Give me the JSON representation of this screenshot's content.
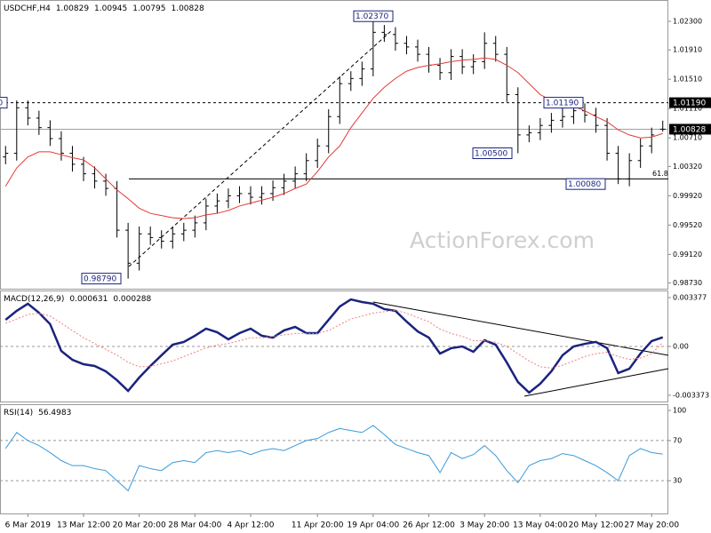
{
  "chart_data": [
    {
      "type": "ohlc",
      "title": "USDCHF,H4",
      "color": "#000000",
      "watermark": "ActionForex.com",
      "categories": [
        null,
        null,
        "6 Mar 2019",
        null,
        null,
        null,
        null,
        "13 Mar 12:00",
        null,
        null,
        null,
        null,
        "20 Mar 20:00",
        null,
        null,
        null,
        null,
        "28 Mar 04:00",
        null,
        null,
        null,
        null,
        "4 Apr 12:00",
        null,
        null,
        null,
        null,
        null,
        "11 Apr 20:00",
        null,
        null,
        null,
        null,
        "19 Apr 04:00",
        null,
        null,
        null,
        null,
        "26 Apr 12:00",
        null,
        null,
        null,
        null,
        "3 May 20:00",
        null,
        null,
        null,
        null,
        "13 May 04:00",
        null,
        null,
        null,
        null,
        "20 May 12:00",
        null,
        null,
        null,
        null,
        "27 May 20:00",
        null
      ],
      "open": [
        1.0045,
        1.005,
        1.0112,
        1.0098,
        1.0085,
        1.007,
        1.005,
        1.0035,
        1.0022,
        1.0012,
        1.0002,
        0.9945,
        0.99,
        0.994,
        0.9935,
        0.993,
        0.994,
        0.9945,
        0.9955,
        0.9978,
        0.9985,
        0.9992,
        0.9995,
        0.999,
        0.9995,
        1.0003,
        1.0012,
        1.0022,
        1.004,
        1.006,
        1.01,
        1.0145,
        1.0152,
        1.0165,
        1.0215,
        1.0212,
        1.02,
        1.0195,
        1.0185,
        1.017,
        1.016,
        1.0182,
        1.0168,
        1.0175,
        1.02,
        1.0185,
        1.013,
        1.0075,
        1.0078,
        1.0088,
        1.0095,
        1.01,
        1.0108,
        1.0102,
        1.0088,
        1.005,
        1.0015,
        1.004,
        1.006,
        1.00829
      ],
      "high": [
        1.006,
        1.0122,
        1.0122,
        1.0108,
        1.0095,
        1.008,
        1.006,
        1.0045,
        1.0032,
        1.0022,
        1.0012,
        0.9955,
        0.995,
        0.995,
        0.9945,
        0.995,
        0.9955,
        0.9965,
        0.9988,
        0.9995,
        1.0002,
        1.0005,
        1.0005,
        1.0005,
        1.0013,
        1.0022,
        1.0032,
        1.005,
        1.007,
        1.011,
        1.0155,
        1.0162,
        1.0175,
        1.0237,
        1.0225,
        1.0222,
        1.021,
        1.0205,
        1.0195,
        1.018,
        1.0192,
        1.0192,
        1.0185,
        1.0215,
        1.021,
        1.0195,
        1.014,
        1.0088,
        1.0098,
        1.0105,
        1.0119,
        1.0118,
        1.0118,
        1.0112,
        1.0098,
        1.006,
        1.005,
        1.007,
        1.0085,
        1.00945
      ],
      "low": [
        1.0035,
        1.004,
        1.0088,
        1.0075,
        1.006,
        1.004,
        1.0025,
        1.0012,
        1.0002,
        0.9992,
        0.9935,
        0.9879,
        0.989,
        0.9925,
        0.992,
        0.992,
        0.993,
        0.9935,
        0.9945,
        0.9968,
        0.9975,
        0.9982,
        0.998,
        0.998,
        0.9985,
        0.9993,
        1.0002,
        1.0012,
        1.003,
        1.005,
        1.009,
        1.0135,
        1.0142,
        1.0155,
        1.0202,
        1.019,
        1.0185,
        1.0175,
        1.016,
        1.015,
        1.015,
        1.0158,
        1.0158,
        1.0165,
        1.0175,
        1.012,
        1.005,
        1.0065,
        1.0068,
        1.0078,
        1.0085,
        1.009,
        1.0092,
        1.0078,
        1.004,
        1.0008,
        1.0005,
        1.003,
        1.005,
        1.00795
      ],
      "close": [
        1.005,
        1.0112,
        1.0098,
        1.0085,
        1.007,
        1.005,
        1.0035,
        1.0022,
        1.0012,
        1.0002,
        0.9945,
        0.99,
        0.994,
        0.9935,
        0.993,
        0.994,
        0.9945,
        0.9955,
        0.9978,
        0.9985,
        0.9992,
        0.9995,
        0.999,
        0.9995,
        1.0003,
        1.0012,
        1.0022,
        1.004,
        1.006,
        1.01,
        1.0145,
        1.0152,
        1.0165,
        1.0215,
        1.0212,
        1.02,
        1.0195,
        1.0185,
        1.017,
        1.016,
        1.0182,
        1.0168,
        1.0175,
        1.02,
        1.0185,
        1.013,
        1.0075,
        1.0078,
        1.0088,
        1.0095,
        1.01,
        1.0108,
        1.0102,
        1.0088,
        1.005,
        1.0015,
        1.004,
        1.006,
        1.0075,
        1.00828
      ],
      "moving_average": {
        "color": "#e53935",
        "values": [
          1.0005,
          1.003,
          1.0045,
          1.0052,
          1.0052,
          1.0048,
          1.0044,
          1.0041,
          1.003,
          1.0015,
          1.0,
          0.9988,
          0.9975,
          0.9968,
          0.9965,
          0.9962,
          0.9961,
          0.9962,
          0.9966,
          0.9968,
          0.9972,
          0.9978,
          0.9982,
          0.9986,
          0.999,
          0.9995,
          1.0002,
          1.0008,
          1.0025,
          1.0045,
          1.006,
          1.0085,
          1.0105,
          1.0125,
          1.014,
          1.0152,
          1.0162,
          1.0167,
          1.017,
          1.0172,
          1.0175,
          1.0177,
          1.0178,
          1.018,
          1.0178,
          1.017,
          1.016,
          1.0145,
          1.013,
          1.0122,
          1.0116,
          1.0114,
          1.0108,
          1.01,
          1.0093,
          1.0082,
          1.0075,
          1.0071,
          1.0072,
          1.0077
        ]
      },
      "price_labels": [
        {
          "value": 1.0237,
          "label": "1.02370"
        },
        {
          "value": 0.9879,
          "label": "0.98790"
        },
        {
          "value": 1.005,
          "label": "1.00500"
        },
        {
          "value": 1.0119,
          "label": "1.01190"
        },
        {
          "value": 1.0008,
          "label": "1.00080"
        },
        {
          "value": 1.0119,
          "label": "1.01190"
        }
      ],
      "resistance": {
        "value": 1.0119,
        "label": "1.01190"
      },
      "last_price": 1.00828,
      "fibonacci": {
        "price": 1.0015,
        "ratio": 61.8
      },
      "ylim": [
        0.98652,
        1.02591
      ],
      "yticks": [
        {
          "value": 1.023,
          "label": "1.02300"
        },
        {
          "value": 1.0191,
          "label": "1.01910"
        },
        {
          "value": 1.0151,
          "label": "1.01510"
        },
        {
          "value": 1.0111,
          "label": "1.01110"
        },
        {
          "value": 1.0071,
          "label": "1.00710"
        },
        {
          "value": 1.0032,
          "label": "1.00320"
        },
        {
          "value": 0.9992,
          "label": "0.99920"
        },
        {
          "value": 0.9952,
          "label": "0.99520"
        },
        {
          "value": 0.9912,
          "label": "0.99120"
        },
        {
          "value": 0.9873,
          "label": "0.98730"
        }
      ]
    },
    {
      "type": "line",
      "title": "MACD(12,26,9)",
      "series": [
        {
          "color": "#1a237e",
          "values": [
            0.00184,
            0.00246,
            0.00295,
            0.00233,
            0.00154,
            -0.00031,
            -0.00092,
            -0.00123,
            -0.00135,
            -0.00172,
            -0.00233,
            -0.00307,
            -0.00215,
            -0.00135,
            -0.00061,
            0.00012,
            0.00031,
            0.00074,
            0.00123,
            0.00098,
            0.00049,
            0.00092,
            0.00123,
            0.00074,
            0.00061,
            0.00111,
            0.00135,
            0.00092,
            0.00092,
            0.00184,
            0.00276,
            0.00325,
            0.00307,
            0.00295,
            0.00258,
            0.00246,
            0.00172,
            0.00104,
            0.00061,
            -0.00049,
            -0.00012,
            0.0,
            -0.00037,
            0.00043,
            0.00012,
            -0.00111,
            -0.00246,
            -0.00319,
            -0.00258,
            -0.00172,
            -0.00061,
            0.0,
            0.00018,
            0.00031,
            -0.00012,
            -0.00184,
            -0.00154,
            -0.00049,
            0.00037,
            0.000631
          ]
        },
        {
          "color": "#f08080",
          "dashed": true,
          "values": [
            0.0016,
            0.0019,
            0.0022,
            0.0023,
            0.0021,
            0.0016,
            0.0011,
            0.0006,
            0.0002,
            -0.0002,
            -0.0006,
            -0.0011,
            -0.0014,
            -0.0014,
            -0.0012,
            -0.001,
            -0.0007,
            -0.0004,
            -0.0001,
            0.0001,
            0.0002,
            0.0004,
            0.0006,
            0.0006,
            0.0007,
            0.0008,
            0.0009,
            0.0009,
            0.0009,
            0.0011,
            0.0015,
            0.0019,
            0.0021,
            0.0023,
            0.0024,
            0.0025,
            0.0023,
            0.002,
            0.0017,
            0.0012,
            0.0009,
            0.0007,
            0.0004,
            0.0004,
            0.0003,
            0.0,
            -0.0005,
            -0.001,
            -0.0014,
            -0.0015,
            -0.0013,
            -0.001,
            -0.0007,
            -0.0005,
            -0.0004,
            -0.0007,
            -0.0009,
            -0.0008,
            -0.0005,
            0.000288
          ]
        }
      ],
      "levels": [
        0
      ],
      "ylim": [
        -0.003807,
        0.003868
      ],
      "yticks": [
        0.003377,
        {
          "value": 0,
          "label": "0.00"
        },
        -0.003373
      ]
    },
    {
      "type": "line",
      "title": "RSI(14)",
      "series": [
        {
          "color": "#3a9ad9",
          "values": [
            62,
            78,
            70,
            65,
            58,
            50,
            45,
            45,
            42,
            40,
            30,
            20,
            45,
            42,
            40,
            48,
            50,
            48,
            58,
            60,
            58,
            60,
            56,
            60,
            62,
            60,
            65,
            70,
            72,
            78,
            82,
            80,
            78,
            85,
            76,
            66,
            62,
            58,
            55,
            38,
            58,
            52,
            56,
            65,
            55,
            40,
            28,
            45,
            50,
            52,
            57,
            55,
            50,
            45,
            38,
            30,
            55,
            62,
            58,
            56.4983
          ]
        }
      ],
      "levels": [
        70,
        30
      ],
      "ylim": [
        -2.65,
        106.2
      ],
      "yticks": [
        100,
        70,
        30
      ]
    }
  ]
}
